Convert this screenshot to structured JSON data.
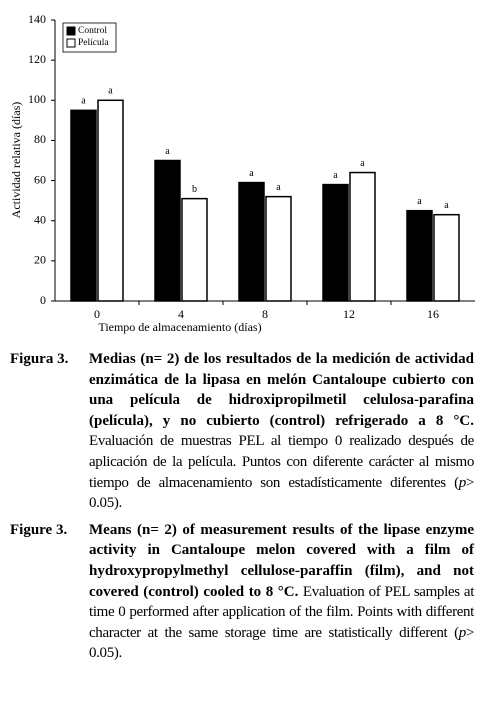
{
  "chart_data": {
    "type": "bar",
    "xlabel": "Tiempo de almacenamiento (días)",
    "ylabel": "Actividad relativa (días)",
    "categories": [
      "0",
      "4",
      "8",
      "12",
      "16"
    ],
    "series": [
      {
        "name": "Control",
        "color": "#000000",
        "values": [
          95,
          70,
          59,
          58,
          45
        ],
        "letters": [
          "a",
          "a",
          "a",
          "a",
          "a"
        ]
      },
      {
        "name": "Película",
        "color": "#ffffff",
        "values": [
          100,
          51,
          52,
          64,
          43
        ],
        "letters": [
          "a",
          "b",
          "a",
          "a",
          "a"
        ]
      }
    ],
    "ylim": [
      0,
      140
    ],
    "yticks": [
      0,
      20,
      40,
      60,
      80,
      100,
      120,
      140
    ],
    "grid": false,
    "legend": "upper left"
  },
  "captions": [
    {
      "label": "Figura 3.",
      "bold": "Medias (n= 2) de los resultados de la medición de actividad enzimática de la lipasa en melón Cantaloupe cubierto con una película de hidroxipropilmetil celulosa-parafina (película), y no cubierto (control) refrigerado a 8 °C.",
      "text": "Evaluación de muestras PEL al tiempo 0 realizado después de aplicación de la película. Puntos con diferente carácter al mismo tiempo de almacenamiento son estadísticamente diferentes (",
      "italic": "p",
      "end": "> 0.05)."
    },
    {
      "label": "Figure 3.",
      "bold": "Means (n= 2) of measurement results of the lipase enzyme activity in Cantaloupe melon covered with a film of hydroxypropylmethyl cellulose-paraffin (film), and not covered (control) cooled to 8 °C.",
      "text": "Evaluation of PEL samples at time 0 performed after application of the film. Points with different character at the same storage time are statistically different (",
      "italic": "p",
      "end": "> 0.05)."
    }
  ]
}
